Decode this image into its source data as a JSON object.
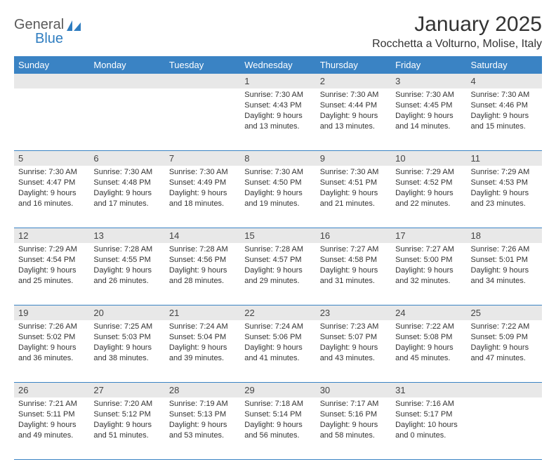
{
  "logo": {
    "text1": "General",
    "text2": "Blue"
  },
  "title": "January 2025",
  "location": "Rocchetta a Volturno, Molise, Italy",
  "colors": {
    "header_bg": "#3a83c4",
    "header_text": "#ffffff",
    "daynum_bg": "#e8e8e8",
    "border": "#3a83c4",
    "text": "#333333",
    "logo_gray": "#5a5a5a",
    "logo_blue": "#2f7dc0"
  },
  "weekdays": [
    "Sunday",
    "Monday",
    "Tuesday",
    "Wednesday",
    "Thursday",
    "Friday",
    "Saturday"
  ],
  "weeks": [
    [
      {
        "day": "",
        "lines": []
      },
      {
        "day": "",
        "lines": []
      },
      {
        "day": "",
        "lines": []
      },
      {
        "day": "1",
        "lines": [
          "Sunrise: 7:30 AM",
          "Sunset: 4:43 PM",
          "Daylight: 9 hours",
          "and 13 minutes."
        ]
      },
      {
        "day": "2",
        "lines": [
          "Sunrise: 7:30 AM",
          "Sunset: 4:44 PM",
          "Daylight: 9 hours",
          "and 13 minutes."
        ]
      },
      {
        "day": "3",
        "lines": [
          "Sunrise: 7:30 AM",
          "Sunset: 4:45 PM",
          "Daylight: 9 hours",
          "and 14 minutes."
        ]
      },
      {
        "day": "4",
        "lines": [
          "Sunrise: 7:30 AM",
          "Sunset: 4:46 PM",
          "Daylight: 9 hours",
          "and 15 minutes."
        ]
      }
    ],
    [
      {
        "day": "5",
        "lines": [
          "Sunrise: 7:30 AM",
          "Sunset: 4:47 PM",
          "Daylight: 9 hours",
          "and 16 minutes."
        ]
      },
      {
        "day": "6",
        "lines": [
          "Sunrise: 7:30 AM",
          "Sunset: 4:48 PM",
          "Daylight: 9 hours",
          "and 17 minutes."
        ]
      },
      {
        "day": "7",
        "lines": [
          "Sunrise: 7:30 AM",
          "Sunset: 4:49 PM",
          "Daylight: 9 hours",
          "and 18 minutes."
        ]
      },
      {
        "day": "8",
        "lines": [
          "Sunrise: 7:30 AM",
          "Sunset: 4:50 PM",
          "Daylight: 9 hours",
          "and 19 minutes."
        ]
      },
      {
        "day": "9",
        "lines": [
          "Sunrise: 7:30 AM",
          "Sunset: 4:51 PM",
          "Daylight: 9 hours",
          "and 21 minutes."
        ]
      },
      {
        "day": "10",
        "lines": [
          "Sunrise: 7:29 AM",
          "Sunset: 4:52 PM",
          "Daylight: 9 hours",
          "and 22 minutes."
        ]
      },
      {
        "day": "11",
        "lines": [
          "Sunrise: 7:29 AM",
          "Sunset: 4:53 PM",
          "Daylight: 9 hours",
          "and 23 minutes."
        ]
      }
    ],
    [
      {
        "day": "12",
        "lines": [
          "Sunrise: 7:29 AM",
          "Sunset: 4:54 PM",
          "Daylight: 9 hours",
          "and 25 minutes."
        ]
      },
      {
        "day": "13",
        "lines": [
          "Sunrise: 7:28 AM",
          "Sunset: 4:55 PM",
          "Daylight: 9 hours",
          "and 26 minutes."
        ]
      },
      {
        "day": "14",
        "lines": [
          "Sunrise: 7:28 AM",
          "Sunset: 4:56 PM",
          "Daylight: 9 hours",
          "and 28 minutes."
        ]
      },
      {
        "day": "15",
        "lines": [
          "Sunrise: 7:28 AM",
          "Sunset: 4:57 PM",
          "Daylight: 9 hours",
          "and 29 minutes."
        ]
      },
      {
        "day": "16",
        "lines": [
          "Sunrise: 7:27 AM",
          "Sunset: 4:58 PM",
          "Daylight: 9 hours",
          "and 31 minutes."
        ]
      },
      {
        "day": "17",
        "lines": [
          "Sunrise: 7:27 AM",
          "Sunset: 5:00 PM",
          "Daylight: 9 hours",
          "and 32 minutes."
        ]
      },
      {
        "day": "18",
        "lines": [
          "Sunrise: 7:26 AM",
          "Sunset: 5:01 PM",
          "Daylight: 9 hours",
          "and 34 minutes."
        ]
      }
    ],
    [
      {
        "day": "19",
        "lines": [
          "Sunrise: 7:26 AM",
          "Sunset: 5:02 PM",
          "Daylight: 9 hours",
          "and 36 minutes."
        ]
      },
      {
        "day": "20",
        "lines": [
          "Sunrise: 7:25 AM",
          "Sunset: 5:03 PM",
          "Daylight: 9 hours",
          "and 38 minutes."
        ]
      },
      {
        "day": "21",
        "lines": [
          "Sunrise: 7:24 AM",
          "Sunset: 5:04 PM",
          "Daylight: 9 hours",
          "and 39 minutes."
        ]
      },
      {
        "day": "22",
        "lines": [
          "Sunrise: 7:24 AM",
          "Sunset: 5:06 PM",
          "Daylight: 9 hours",
          "and 41 minutes."
        ]
      },
      {
        "day": "23",
        "lines": [
          "Sunrise: 7:23 AM",
          "Sunset: 5:07 PM",
          "Daylight: 9 hours",
          "and 43 minutes."
        ]
      },
      {
        "day": "24",
        "lines": [
          "Sunrise: 7:22 AM",
          "Sunset: 5:08 PM",
          "Daylight: 9 hours",
          "and 45 minutes."
        ]
      },
      {
        "day": "25",
        "lines": [
          "Sunrise: 7:22 AM",
          "Sunset: 5:09 PM",
          "Daylight: 9 hours",
          "and 47 minutes."
        ]
      }
    ],
    [
      {
        "day": "26",
        "lines": [
          "Sunrise: 7:21 AM",
          "Sunset: 5:11 PM",
          "Daylight: 9 hours",
          "and 49 minutes."
        ]
      },
      {
        "day": "27",
        "lines": [
          "Sunrise: 7:20 AM",
          "Sunset: 5:12 PM",
          "Daylight: 9 hours",
          "and 51 minutes."
        ]
      },
      {
        "day": "28",
        "lines": [
          "Sunrise: 7:19 AM",
          "Sunset: 5:13 PM",
          "Daylight: 9 hours",
          "and 53 minutes."
        ]
      },
      {
        "day": "29",
        "lines": [
          "Sunrise: 7:18 AM",
          "Sunset: 5:14 PM",
          "Daylight: 9 hours",
          "and 56 minutes."
        ]
      },
      {
        "day": "30",
        "lines": [
          "Sunrise: 7:17 AM",
          "Sunset: 5:16 PM",
          "Daylight: 9 hours",
          "and 58 minutes."
        ]
      },
      {
        "day": "31",
        "lines": [
          "Sunrise: 7:16 AM",
          "Sunset: 5:17 PM",
          "Daylight: 10 hours",
          "and 0 minutes."
        ]
      },
      {
        "day": "",
        "lines": []
      }
    ]
  ]
}
